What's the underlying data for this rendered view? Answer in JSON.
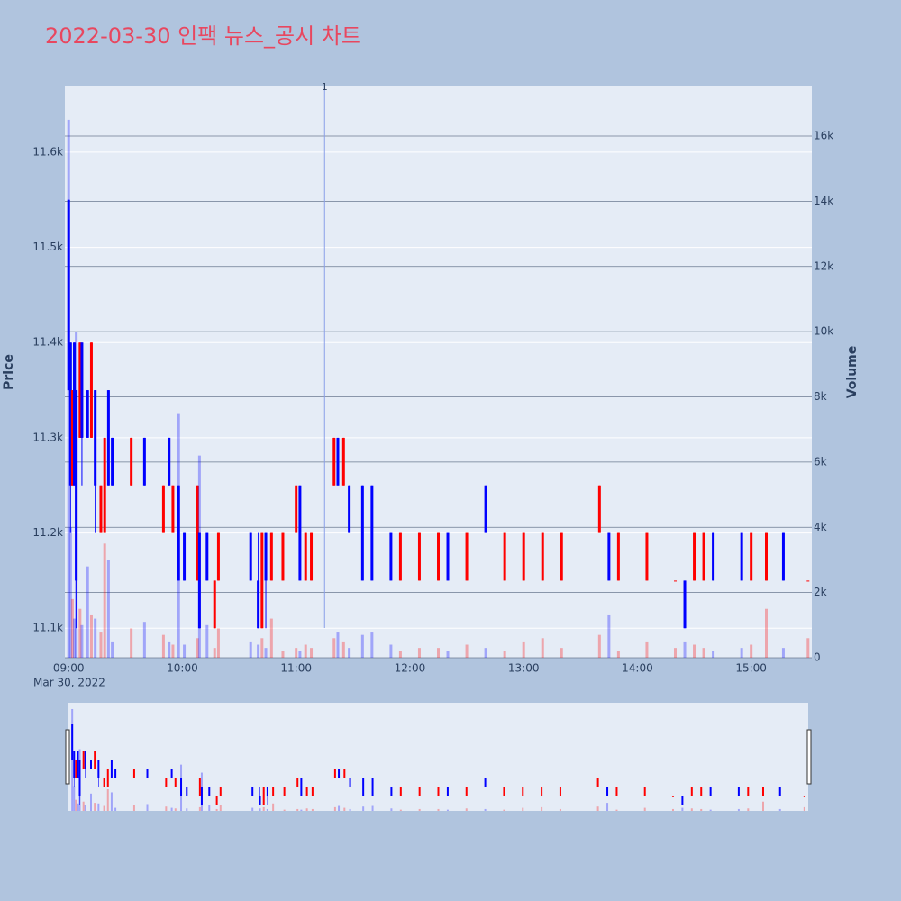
{
  "chart_data": {
    "type": "candlestick",
    "title": "2022-03-30 인팩 뉴스_공시 차트",
    "ylabel": "Price",
    "y2label": "Volume",
    "x_date_label": "Mar 30, 2022",
    "increasing_color": "#ff0000",
    "decreasing_color": "#0000ff",
    "x": [
      "09:00",
      "09:01",
      "09:02",
      "09:03",
      "09:04",
      "09:06",
      "09:07",
      "09:10",
      "09:12",
      "09:14",
      "09:17",
      "09:19",
      "09:21",
      "09:23",
      "09:33",
      "09:40",
      "09:50",
      "09:53",
      "09:55",
      "09:58",
      "10:01",
      "10:08",
      "10:09",
      "10:13",
      "10:17",
      "10:19",
      "10:36",
      "10:40",
      "10:42",
      "10:44",
      "10:47",
      "10:53",
      "11:00",
      "11:02",
      "11:05",
      "11:08",
      "11:20",
      "11:22",
      "11:25",
      "11:28",
      "11:35",
      "11:40",
      "11:50",
      "11:55",
      "12:05",
      "12:15",
      "12:20",
      "12:30",
      "12:40",
      "12:50",
      "13:00",
      "13:10",
      "13:20",
      "13:40",
      "13:45",
      "13:50",
      "14:05",
      "14:20",
      "14:25",
      "14:30",
      "14:35",
      "14:40",
      "14:55",
      "15:00",
      "15:08",
      "15:17",
      "15:30"
    ],
    "open": [
      11550,
      11400,
      11250,
      11400,
      11350,
      11300,
      11400,
      11350,
      11300,
      11350,
      11200,
      11200,
      11350,
      11300,
      11250,
      11300,
      11200,
      11300,
      11200,
      11250,
      11200,
      11150,
      11200,
      11200,
      11100,
      11150,
      11200,
      11150,
      11100,
      11200,
      11150,
      11150,
      11200,
      11250,
      11150,
      11150,
      11250,
      11300,
      11250,
      11250,
      11250,
      11250,
      11200,
      11150,
      11150,
      11150,
      11200,
      11150,
      11250,
      11150,
      11150,
      11150,
      11150,
      11200,
      11200,
      11150,
      11150,
      11150,
      11150,
      11150,
      11150,
      11200,
      11200,
      11150,
      11150,
      11200,
      11150
    ],
    "high": [
      11550,
      11400,
      11350,
      11400,
      11350,
      11400,
      11400,
      11350,
      11400,
      11350,
      11250,
      11300,
      11350,
      11300,
      11300,
      11300,
      11250,
      11300,
      11250,
      11250,
      11200,
      11250,
      11200,
      11200,
      11150,
      11200,
      11200,
      11200,
      11200,
      11200,
      11200,
      11200,
      11250,
      11250,
      11200,
      11200,
      11300,
      11300,
      11300,
      11250,
      11250,
      11250,
      11200,
      11200,
      11200,
      11200,
      11200,
      11200,
      11250,
      11200,
      11200,
      11200,
      11200,
      11250,
      11200,
      11200,
      11200,
      11150,
      11150,
      11200,
      11200,
      11200,
      11200,
      11200,
      11200,
      11200,
      11150
    ],
    "low": [
      11350,
      11200,
      11250,
      11250,
      11100,
      11300,
      11250,
      11300,
      11300,
      11200,
      11200,
      11200,
      11250,
      11250,
      11250,
      11250,
      11200,
      11250,
      11200,
      11150,
      11150,
      11150,
      11100,
      11150,
      11100,
      11150,
      11150,
      11100,
      11100,
      11100,
      11150,
      11150,
      11200,
      11150,
      11150,
      11150,
      11250,
      11250,
      11250,
      11200,
      11150,
      11150,
      11150,
      11150,
      11150,
      11150,
      11150,
      11150,
      11200,
      11150,
      11150,
      11150,
      11150,
      11200,
      11150,
      11150,
      11150,
      11150,
      11100,
      11150,
      11150,
      11150,
      11150,
      11150,
      11150,
      11150,
      11150
    ],
    "close": [
      11350,
      11250,
      11350,
      11250,
      11150,
      11400,
      11300,
      11300,
      11400,
      11250,
      11250,
      11300,
      11250,
      11250,
      11300,
      11250,
      11250,
      11250,
      11250,
      11150,
      11150,
      11250,
      11100,
      11150,
      11150,
      11200,
      11150,
      11100,
      11200,
      11150,
      11200,
      11200,
      11250,
      11150,
      11200,
      11200,
      11300,
      11250,
      11300,
      11200,
      11150,
      11150,
      11150,
      11200,
      11200,
      11200,
      11150,
      11200,
      11200,
      11200,
      11200,
      11200,
      11200,
      11250,
      11150,
      11200,
      11200,
      11150,
      11100,
      11200,
      11200,
      11150,
      11150,
      11200,
      11200,
      11150,
      11150
    ],
    "volume": [
      16500,
      4000,
      1800,
      1200,
      10000,
      1500,
      1000,
      2800,
      1300,
      1200,
      800,
      3500,
      3000,
      500,
      900,
      1100,
      700,
      500,
      400,
      7500,
      400,
      600,
      6200,
      1000,
      300,
      900,
      500,
      400,
      600,
      300,
      1200,
      200,
      300,
      200,
      400,
      300,
      600,
      800,
      500,
      300,
      700,
      800,
      400,
      200,
      300,
      300,
      200,
      400,
      300,
      200,
      500,
      600,
      300,
      700,
      1300,
      200,
      500,
      300,
      500,
      400,
      300,
      200,
      300,
      400,
      1500,
      300,
      600
    ],
    "xlim": [
      "08:58",
      "15:32"
    ],
    "xticks": [
      "09:00",
      "10:00",
      "11:00",
      "12:00",
      "13:00",
      "14:00",
      "15:00"
    ],
    "ylim": [
      11069,
      11669
    ],
    "yticks": [
      {
        "value": 11100,
        "label": "11.1k"
      },
      {
        "value": 11200,
        "label": "11.2k"
      },
      {
        "value": 11300,
        "label": "11.3k"
      },
      {
        "value": 11400,
        "label": "11.4k"
      },
      {
        "value": 11500,
        "label": "11.5k"
      },
      {
        "value": 11600,
        "label": "11.6k"
      }
    ],
    "y2lim": [
      0,
      17520
    ],
    "y2ticks": [
      0,
      {
        "value": 2000,
        "label": "2k"
      },
      {
        "value": 4000,
        "label": "4k"
      },
      {
        "value": 6000,
        "label": "6k"
      },
      {
        "value": 8000,
        "label": "8k"
      },
      {
        "value": 10000,
        "label": "10k"
      },
      {
        "value": 12000,
        "label": "12k"
      },
      {
        "value": 14000,
        "label": "14k"
      },
      {
        "value": 16000,
        "label": "16k"
      }
    ],
    "annotation": {
      "x": "11:15",
      "text": "1"
    }
  }
}
